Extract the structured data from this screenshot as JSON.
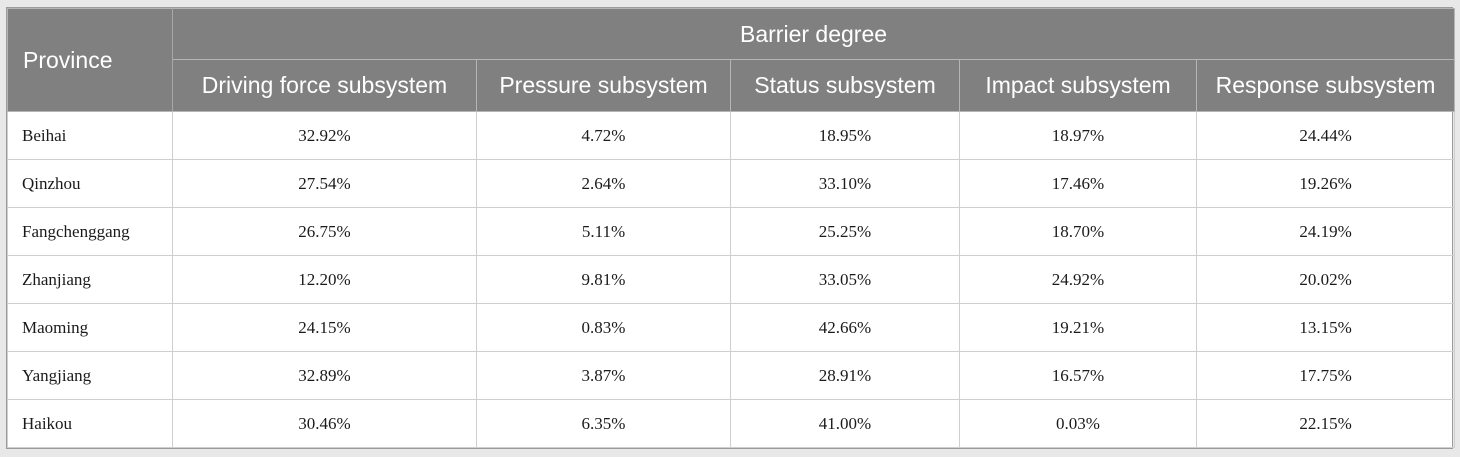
{
  "table": {
    "province_header": "Province",
    "group_header": "Barrier degree",
    "columns": [
      "Driving force subsystem",
      "Pressure subsystem",
      "Status subsystem",
      "Impact subsystem",
      "Response subsystem"
    ],
    "rows": [
      {
        "province": "Beihai",
        "values": [
          "32.92%",
          "4.72%",
          "18.95%",
          "18.97%",
          "24.44%"
        ]
      },
      {
        "province": "Qinzhou",
        "values": [
          "27.54%",
          "2.64%",
          "33.10%",
          "17.46%",
          "19.26%"
        ]
      },
      {
        "province": "Fangchenggang",
        "values": [
          "26.75%",
          "5.11%",
          "25.25%",
          "18.70%",
          "24.19%"
        ]
      },
      {
        "province": "Zhanjiang",
        "values": [
          "12.20%",
          "9.81%",
          "33.05%",
          "24.92%",
          "20.02%"
        ]
      },
      {
        "province": "Maoming",
        "values": [
          "24.15%",
          "0.83%",
          "42.66%",
          "19.21%",
          "13.15%"
        ]
      },
      {
        "province": "Yangjiang",
        "values": [
          "32.89%",
          "3.87%",
          "28.91%",
          "16.57%",
          "17.75%"
        ]
      },
      {
        "province": "Haikou",
        "values": [
          "30.46%",
          "6.35%",
          "41.00%",
          "0.03%",
          "22.15%"
        ]
      }
    ]
  }
}
